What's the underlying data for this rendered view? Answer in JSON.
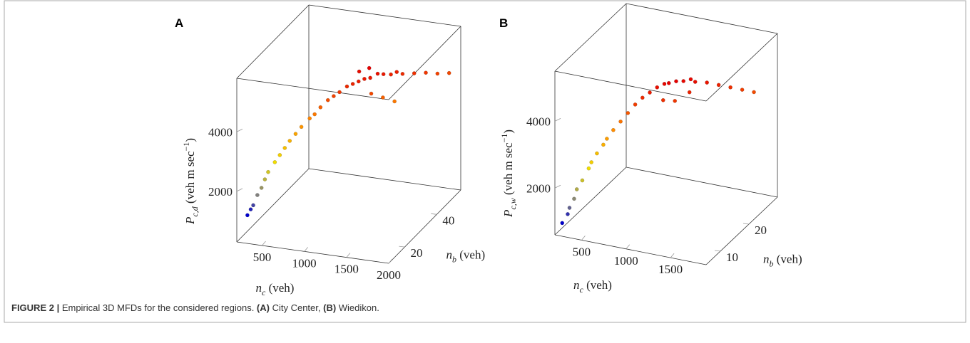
{
  "chart_data": [
    {
      "type": "scatter3d",
      "panel": "A",
      "xlabel": {
        "text": "n",
        "sub": "c",
        "unit": " (veh)"
      },
      "ylabel": {
        "text": "n",
        "sub": "b",
        "unit": " (veh)"
      },
      "zlabel": {
        "text": "P",
        "sub": "c,d",
        "unit": " (veh m sec",
        "sup": "−1",
        "close": ")"
      },
      "xlim": [
        200,
        2000
      ],
      "xticks": [
        500,
        1000,
        1500,
        2000
      ],
      "ylim": [
        10,
        55
      ],
      "yticks": [
        20,
        40
      ],
      "zlim": [
        300,
        5800
      ],
      "zticks": [
        2000,
        4000
      ],
      "colormap": [
        "#0000cc",
        "#808080",
        "#f0e000",
        "#ff8c00",
        "#e60000"
      ],
      "x": [
        250,
        270,
        300,
        330,
        360,
        400,
        420,
        480,
        520,
        560,
        600,
        650,
        700,
        760,
        800,
        850,
        900,
        950,
        1000,
        1050,
        1100,
        1150,
        1200,
        1250,
        1300,
        1350,
        1400,
        1450,
        1500,
        1600,
        1700,
        1800,
        1900,
        1300,
        1400,
        1500,
        1200,
        1100
      ],
      "y": [
        14,
        15,
        15,
        16,
        17,
        17,
        18,
        19,
        20,
        21,
        22,
        23,
        24,
        26,
        27,
        28,
        30,
        31,
        32,
        34,
        35,
        36,
        37,
        38,
        40,
        41,
        43,
        44,
        45,
        47,
        49,
        51,
        53,
        36,
        38,
        40,
        40,
        39
      ],
      "z": [
        1000,
        1150,
        1300,
        1600,
        1800,
        2100,
        2300,
        2600,
        2800,
        3000,
        3200,
        3400,
        3600,
        3800,
        3900,
        4100,
        4250,
        4350,
        4450,
        4550,
        4600,
        4650,
        4700,
        4700,
        4750,
        4700,
        4600,
        4650,
        4550,
        4500,
        4450,
        4350,
        4300,
        4300,
        4100,
        3900,
        4900,
        4800
      ]
    },
    {
      "type": "scatter3d",
      "panel": "B",
      "xlabel": {
        "text": "n",
        "sub": "c",
        "unit": " (veh)"
      },
      "ylabel": {
        "text": "n",
        "sub": "b",
        "unit": " (veh)"
      },
      "zlabel": {
        "text": "P",
        "sub": "c,w",
        "unit": " (veh m sec",
        "sup": "−1",
        "close": ")"
      },
      "xlim": [
        200,
        1900
      ],
      "xticks": [
        500,
        1000,
        1500
      ],
      "ylim": [
        5,
        30
      ],
      "yticks": [
        10,
        20
      ],
      "zlim": [
        600,
        5500
      ],
      "zticks": [
        2000,
        4000
      ],
      "colormap": [
        "#0000cc",
        "#808080",
        "#f0e000",
        "#ff8c00",
        "#e60000"
      ],
      "x": [
        250,
        280,
        300,
        320,
        350,
        380,
        420,
        450,
        480,
        520,
        560,
        600,
        650,
        700,
        750,
        800,
        850,
        900,
        950,
        1000,
        1050,
        1100,
        1150,
        1200,
        1300,
        1400,
        1500,
        1600,
        1700,
        1000,
        1100,
        1200
      ],
      "y": [
        6,
        7,
        7,
        8,
        8,
        9,
        10,
        10,
        11,
        12,
        12,
        13,
        14,
        15,
        16,
        17,
        18,
        19,
        20,
        20,
        21,
        22,
        23,
        23,
        24,
        25,
        26,
        27,
        28,
        18,
        19,
        21
      ],
      "z": [
        900,
        1100,
        1300,
        1500,
        1800,
        2000,
        2300,
        2500,
        2700,
        2900,
        3100,
        3300,
        3500,
        3700,
        3900,
        4050,
        4150,
        4250,
        4300,
        4350,
        4350,
        4300,
        4300,
        4250,
        4200,
        4100,
        4000,
        3900,
        3800,
        4000,
        3950,
        4100
      ]
    }
  ],
  "caption": {
    "label": "FIGURE 2 |",
    "text": " Empirical 3D MFDs for the considered regions. ",
    "a": "(A)",
    "a_text": " City Center, ",
    "b": "(B)",
    "b_text": " Wiedikon."
  }
}
